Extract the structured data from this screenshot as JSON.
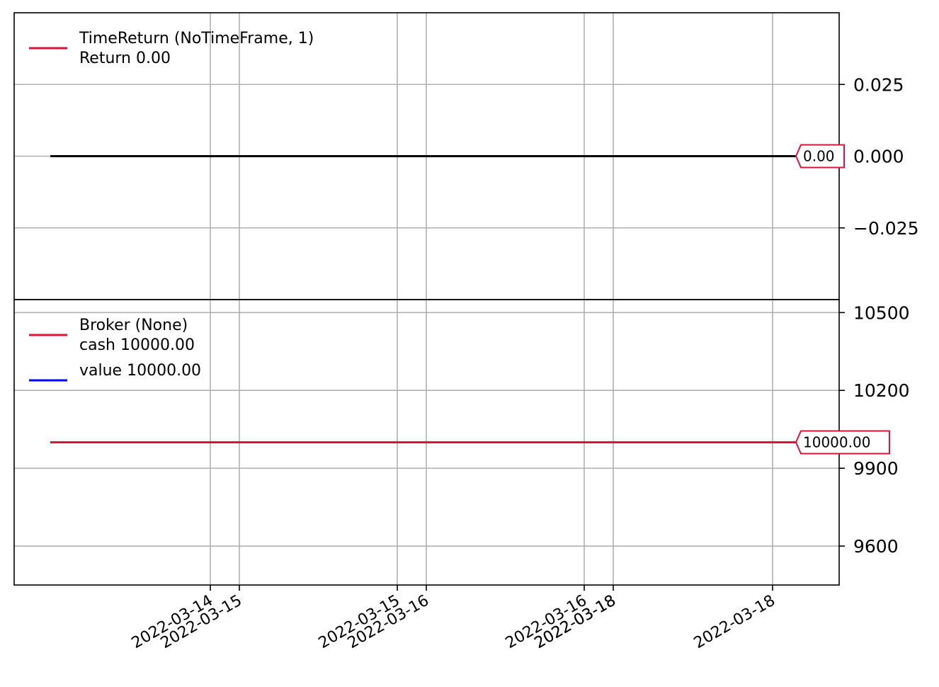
{
  "colors": {
    "crimson": "#dc143c",
    "blue": "#0000ff",
    "black": "#000000",
    "grid": "#b0b0b0"
  },
  "chart_data": [
    {
      "type": "line",
      "panel": "top",
      "ylim": [
        -0.05,
        0.05
      ],
      "yticks": [
        0.025,
        0.0,
        -0.025
      ],
      "ytick_labels": [
        "0.025",
        "0.000",
        "−0.025"
      ],
      "grid": true,
      "legend_placement": "upper-left",
      "legend": [
        {
          "name": "TimeReturn (NoTimeFrame, 1)",
          "sub": "Return 0.00",
          "color": "#dc143c"
        }
      ],
      "series": [
        {
          "values": [
            0.0,
            0.0
          ],
          "color": "#000000"
        }
      ],
      "last_value_tag": "0.00"
    },
    {
      "type": "line",
      "panel": "bottom",
      "ylim": [
        9450,
        10550
      ],
      "yticks": [
        10500,
        10200,
        9900,
        9600
      ],
      "ytick_labels": [
        "10500",
        "10200",
        "9900",
        "9600"
      ],
      "grid": true,
      "legend_placement": "upper-left",
      "legend": [
        {
          "name": "Broker (None)",
          "sub": "cash 10000.00",
          "color": "#dc143c"
        },
        {
          "name": "value 10000.00",
          "sub": "",
          "color": "#0000ff"
        }
      ],
      "series": [
        {
          "values": [
            10000,
            10000
          ],
          "color": "#dc143c"
        }
      ],
      "last_value_tag": "10000.00"
    }
  ],
  "x_axis": {
    "tick_labels": [
      "2022-03-14",
      "2022-03-15",
      "2022-03-15",
      "2022-03-16",
      "2022-03-16",
      "2022-03-18",
      "2022-03-18",
      "2022-03-18"
    ],
    "label_rotation_deg": 30
  }
}
